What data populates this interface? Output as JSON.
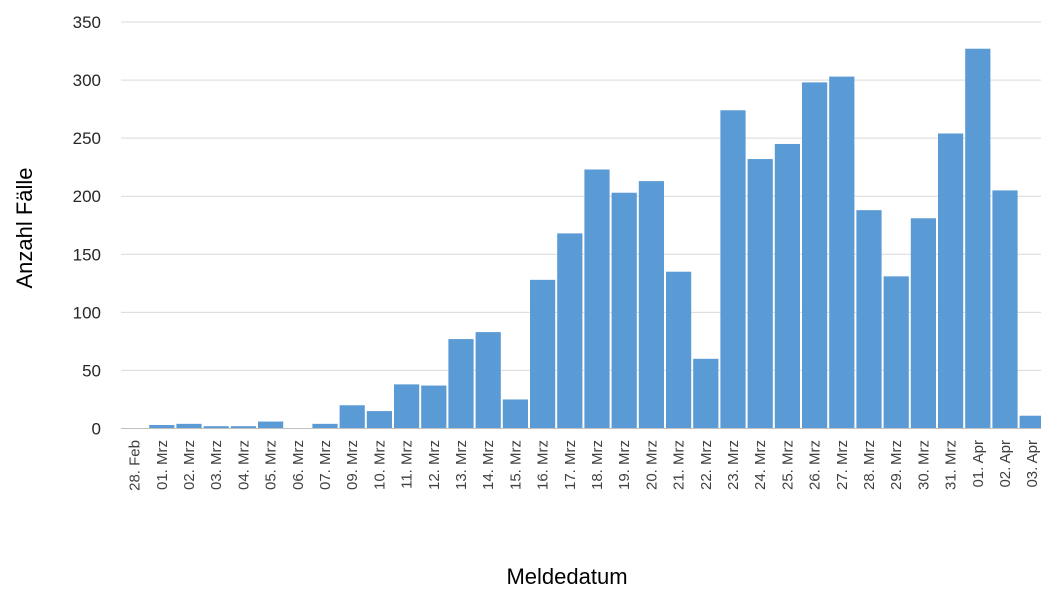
{
  "chart_data": {
    "type": "bar",
    "title": "",
    "xlabel": "Meldedatum",
    "ylabel": "Anzahl Fälle",
    "ylim": [
      0,
      350
    ],
    "yticks": [
      0,
      50,
      100,
      150,
      200,
      250,
      300,
      350
    ],
    "grid": true,
    "categories": [
      "28. Feb",
      "01. Mrz",
      "02. Mrz",
      "03. Mrz",
      "04. Mrz",
      "05. Mrz",
      "06. Mrz",
      "07. Mrz",
      "09. Mrz",
      "10. Mrz",
      "11. Mrz",
      "12. Mrz",
      "13. Mrz",
      "14. Mrz",
      "15. Mrz",
      "16. Mrz",
      "17. Mrz",
      "18. Mrz",
      "19. Mrz",
      "20. Mrz",
      "21. Mrz",
      "22. Mrz",
      "23. Mrz",
      "24. Mrz",
      "25. Mrz",
      "26. Mrz",
      "27. Mrz",
      "28. Mrz",
      "29. Mrz",
      "30. Mrz",
      "31. Mrz",
      "01. Apr",
      "02. Apr",
      "03. Apr"
    ],
    "values": [
      0,
      3,
      4,
      2,
      2,
      6,
      0,
      4,
      20,
      15,
      38,
      37,
      77,
      83,
      25,
      128,
      168,
      223,
      203,
      213,
      135,
      60,
      274,
      232,
      245,
      298,
      303,
      188,
      131,
      181,
      254,
      327,
      205,
      11
    ],
    "colors": {
      "bar": "#5B9BD5",
      "grid": "#D9D9D9",
      "axis": "#BFBFBF"
    }
  }
}
